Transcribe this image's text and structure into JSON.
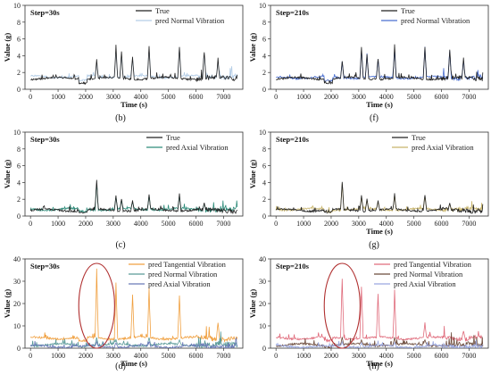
{
  "chart_data": [
    {
      "panel": "(b)",
      "type": "line",
      "step": "Step=30s",
      "xlabel": "Time (s)",
      "ylabel": "Value (g)",
      "xlim": [
        -200,
        7700
      ],
      "ylim": [
        0,
        10
      ],
      "xticks": [
        "0",
        "1000",
        "2000",
        "3000",
        "4000",
        "5000",
        "6000",
        "7000"
      ],
      "yticks": [
        "0",
        "2",
        "4",
        "6",
        "8",
        "10"
      ],
      "legend_position": "top-right",
      "series": [
        {
          "name": "True",
          "color": "#222222",
          "baseline": 1.3,
          "peaks": [
            [
              2400,
              3.6
            ],
            [
              3100,
              5.3
            ],
            [
              3300,
              4.6
            ],
            [
              3700,
              3.9
            ],
            [
              4300,
              5.5
            ],
            [
              5400,
              5.4
            ],
            [
              6300,
              4.9
            ],
            [
              6800,
              3.8
            ]
          ]
        },
        {
          "name": "pred Normal Vibration",
          "color": "#b4cde6",
          "baseline": 1.5,
          "peaks": [
            [
              2400,
              3.4
            ],
            [
              3100,
              5.0
            ],
            [
              3300,
              4.3
            ],
            [
              3700,
              3.7
            ],
            [
              4300,
              5.2
            ],
            [
              5400,
              5.1
            ],
            [
              6300,
              4.6
            ],
            [
              6800,
              3.6
            ]
          ]
        }
      ]
    },
    {
      "panel": "(f)",
      "type": "line",
      "step": "Step=210s",
      "xlabel": "Time (s)",
      "ylabel": "Value (g)",
      "xlim": [
        -200,
        7700
      ],
      "ylim": [
        0,
        10
      ],
      "xticks": [
        "0",
        "1000",
        "2000",
        "3000",
        "4000",
        "5000",
        "6000",
        "7000"
      ],
      "yticks": [
        "0",
        "2",
        "4",
        "6",
        "8",
        "10"
      ],
      "legend_position": "top-right",
      "series": [
        {
          "name": "True",
          "color": "#222222",
          "baseline": 1.3,
          "peaks": [
            [
              2400,
              3.6
            ],
            [
              3100,
              5.3
            ],
            [
              3300,
              4.6
            ],
            [
              3700,
              3.9
            ],
            [
              4300,
              5.5
            ],
            [
              5400,
              5.4
            ],
            [
              6300,
              5.0
            ],
            [
              6800,
              3.8
            ]
          ]
        },
        {
          "name": "pred Normal Vibration",
          "color": "#4a6fd0",
          "baseline": 1.4,
          "peaks": [
            [
              2400,
              3.4
            ],
            [
              3100,
              5.0
            ],
            [
              3300,
              4.3
            ],
            [
              3700,
              3.7
            ],
            [
              4300,
              5.2
            ],
            [
              5400,
              5.1
            ],
            [
              6300,
              4.7
            ],
            [
              6800,
              3.6
            ]
          ]
        }
      ]
    },
    {
      "panel": "(c)",
      "type": "line",
      "step": "Step=30s",
      "xlabel": "",
      "ylabel": "Value (g)",
      "xlim": [
        -200,
        7700
      ],
      "ylim": [
        0,
        10
      ],
      "xticks": [
        "0",
        "1000",
        "2000",
        "3000",
        "4000",
        "5000",
        "6000",
        "7000"
      ],
      "yticks": [
        "0",
        "2",
        "4",
        "6",
        "8",
        "10"
      ],
      "legend_position": "top-right",
      "series": [
        {
          "name": "True",
          "color": "#222222",
          "baseline": 0.7,
          "peaks": [
            [
              2400,
              4.6
            ],
            [
              3100,
              2.6
            ],
            [
              3300,
              2.2
            ],
            [
              3700,
              1.9
            ],
            [
              4300,
              2.8
            ],
            [
              5400,
              2.7
            ],
            [
              6300,
              1.6
            ]
          ]
        },
        {
          "name": "pred Axial Vibration",
          "color": "#2e8c7a",
          "baseline": 0.8,
          "peaks": [
            [
              2400,
              4.3
            ],
            [
              3100,
              2.4
            ],
            [
              3300,
              2.0
            ],
            [
              3700,
              1.8
            ],
            [
              4300,
              2.6
            ],
            [
              5400,
              2.5
            ],
            [
              6300,
              1.5
            ]
          ]
        }
      ]
    },
    {
      "panel": "(g)",
      "type": "line",
      "step": "Step=210s",
      "xlabel": "Time (s)",
      "ylabel": "Value (g)",
      "xlim": [
        -200,
        7700
      ],
      "ylim": [
        0,
        10
      ],
      "xticks": [
        "0",
        "1000",
        "2000",
        "3000",
        "4000",
        "5000",
        "6000",
        "7000"
      ],
      "yticks": [
        "0",
        "2",
        "4",
        "6",
        "8",
        "10"
      ],
      "legend_position": "top-right",
      "series": [
        {
          "name": "True",
          "color": "#222222",
          "baseline": 0.7,
          "peaks": [
            [
              2400,
              4.4
            ],
            [
              3100,
              2.6
            ],
            [
              3300,
              2.2
            ],
            [
              3700,
              1.9
            ],
            [
              4300,
              2.8
            ],
            [
              5400,
              2.7
            ],
            [
              6300,
              1.6
            ]
          ]
        },
        {
          "name": "pred Axial Vibration",
          "color": "#c8b46a",
          "baseline": 0.8,
          "peaks": [
            [
              2400,
              4.1
            ],
            [
              3100,
              2.4
            ],
            [
              3300,
              2.0
            ],
            [
              3700,
              1.8
            ],
            [
              4300,
              2.6
            ],
            [
              5400,
              2.5
            ],
            [
              6300,
              1.5
            ]
          ]
        }
      ]
    },
    {
      "panel": "(d)",
      "type": "line",
      "step": "Step=30s",
      "xlabel": "Time (s)",
      "ylabel": "Value (g)",
      "xlim": [
        -200,
        7700
      ],
      "ylim": [
        0,
        40
      ],
      "xticks": [
        "0",
        "1000",
        "2000",
        "3000",
        "4000",
        "5000",
        "6000",
        "7000"
      ],
      "yticks": [
        "0",
        "10",
        "20",
        "30",
        "40"
      ],
      "legend_position": "top-right",
      "ellipse": {
        "cx": 2400,
        "cy": 19,
        "rx": 650,
        "ry": 19
      },
      "series": [
        {
          "name": "pred Tangential Vibration",
          "color": "#f0a040",
          "baseline": 4.5,
          "peaks": [
            [
              2400,
              36
            ],
            [
              3100,
              31
            ],
            [
              3700,
              25
            ],
            [
              4300,
              27
            ],
            [
              5400,
              24
            ],
            [
              6800,
              12
            ]
          ]
        },
        {
          "name": "pred Normal Vibration",
          "color": "#5a9a98",
          "baseline": 1.5,
          "peaks": [
            [
              2400,
              5
            ],
            [
              3100,
              4
            ],
            [
              4300,
              5
            ],
            [
              5400,
              4
            ]
          ]
        },
        {
          "name": "pred Axial Vibration",
          "color": "#6a7ab8",
          "baseline": 0.8,
          "peaks": [
            [
              2400,
              3
            ],
            [
              3100,
              2.5
            ],
            [
              4300,
              2.8
            ]
          ]
        }
      ]
    },
    {
      "panel": "(h)",
      "type": "line",
      "step": "Step=210s",
      "xlabel": "Time (s)",
      "ylabel": "Value (g)",
      "xlim": [
        -200,
        7700
      ],
      "ylim": [
        0,
        40
      ],
      "xticks": [
        "0",
        "1000",
        "2000",
        "3000",
        "4000",
        "5000",
        "6000",
        "7000"
      ],
      "yticks": [
        "0",
        "10",
        "20",
        "30",
        "40"
      ],
      "legend_position": "top-right",
      "ellipse": {
        "cx": 2400,
        "cy": 19,
        "rx": 650,
        "ry": 19
      },
      "series": [
        {
          "name": "pred Tangential Vibration",
          "color": "#e06c7c",
          "baseline": 4.5,
          "peaks": [
            [
              2400,
              34
            ],
            [
              3100,
              30
            ],
            [
              3700,
              25
            ],
            [
              4300,
              27
            ],
            [
              5400,
              12
            ],
            [
              6800,
              8
            ]
          ]
        },
        {
          "name": "pred Normal Vibration",
          "color": "#6b4a3a",
          "baseline": 1.5,
          "peaks": [
            [
              2400,
              5
            ],
            [
              3100,
              4
            ],
            [
              4300,
              5
            ],
            [
              5400,
              4
            ]
          ]
        },
        {
          "name": "pred Axial Vibration",
          "color": "#9aa8e0",
          "baseline": 0.8,
          "peaks": [
            [
              2400,
              3
            ],
            [
              3100,
              2.5
            ],
            [
              4300,
              2.8
            ]
          ]
        }
      ]
    }
  ]
}
